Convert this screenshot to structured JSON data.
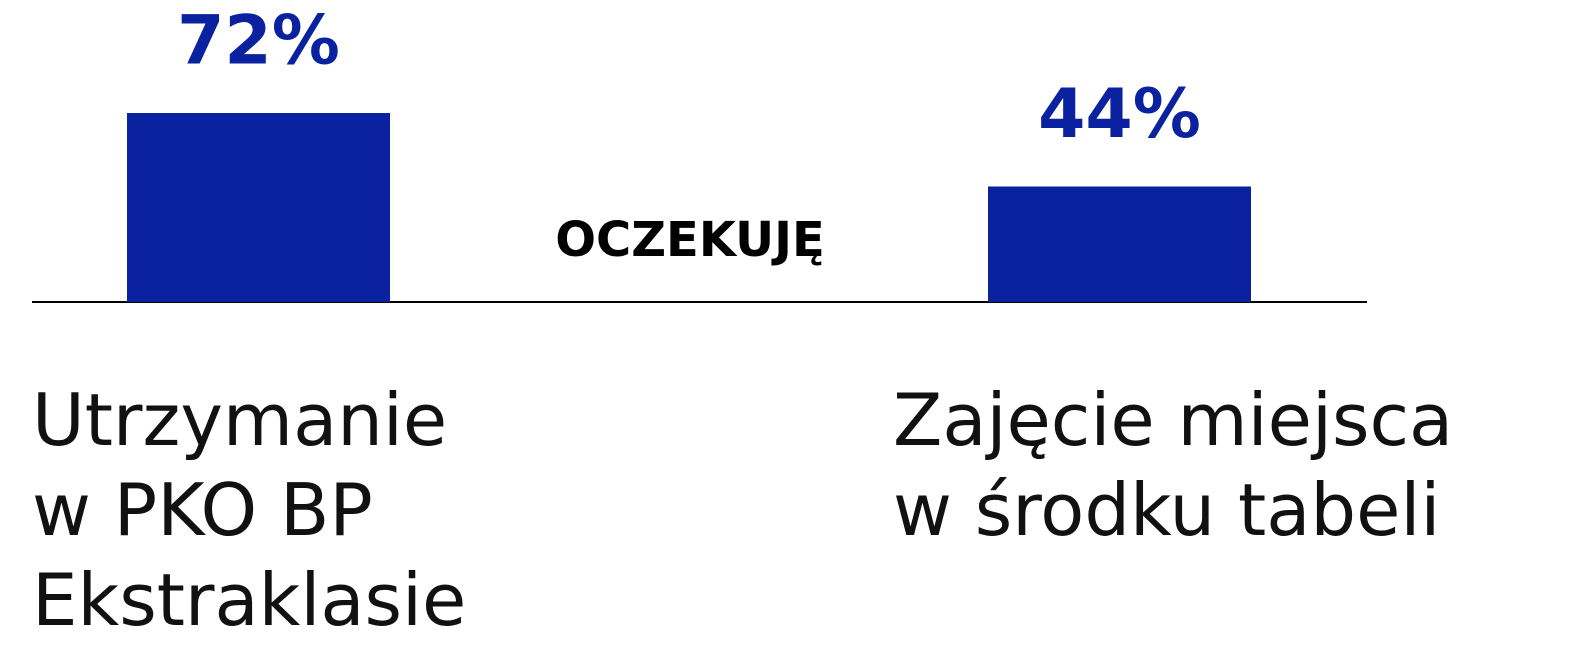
{
  "chart_data": {
    "type": "bar",
    "annotation": "OCZEKUJĘ",
    "categories": [
      "Utrzymanie\nw PKO BP\nEkstraklasie",
      "Zajęcie miejsca\nw środku tabeli"
    ],
    "values": [
      72,
      44
    ],
    "value_labels": [
      "72%",
      "44%"
    ],
    "color": "#0a21a0"
  }
}
